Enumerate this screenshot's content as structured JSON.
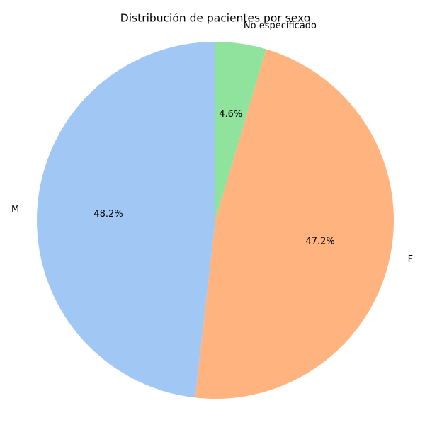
{
  "chart_data": {
    "type": "pie",
    "title": "Distribución de pacientes por sexo",
    "categories": [
      "No especificado",
      "F",
      "M"
    ],
    "values": [
      4.6,
      47.2,
      48.2
    ],
    "percent_labels": [
      "4.6%",
      "47.2%",
      "48.2%"
    ],
    "colors": [
      "#8fe39c",
      "#ffb47f",
      "#a1c8f4"
    ],
    "start_angle_deg": 90,
    "direction": "clockwise",
    "legend": "none"
  }
}
